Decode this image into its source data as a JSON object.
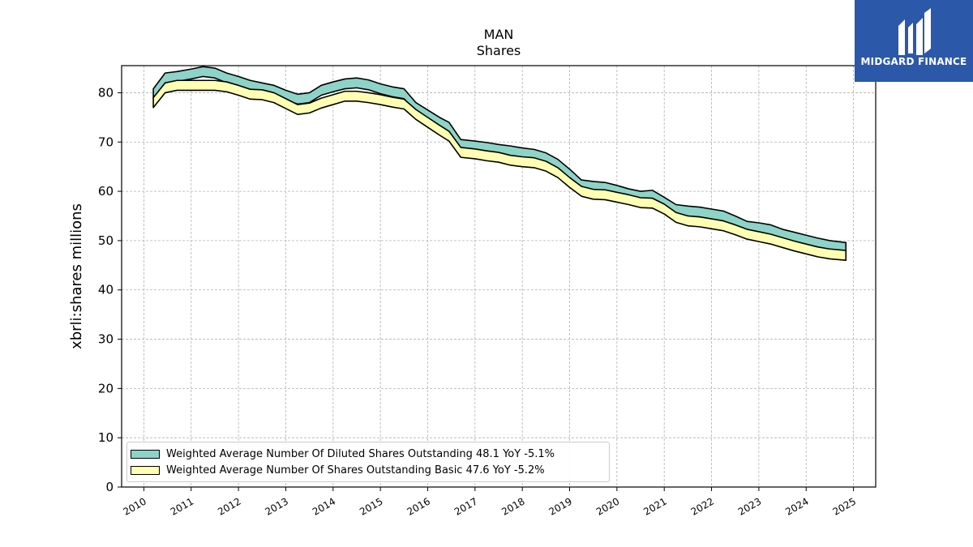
{
  "header": {
    "title": "MAN",
    "subtitle": "Shares"
  },
  "logo": {
    "text": "MIDGARD FINANCE",
    "icon": "midgard-logo-icon"
  },
  "chart_data": {
    "type": "area",
    "title": "MAN",
    "subtitle": "Shares",
    "xlabel": "",
    "ylabel": "xbrli:shares millions",
    "xlim": [
      2009.53,
      2025.47
    ],
    "ylim": [
      0,
      85.5
    ],
    "grid": true,
    "legend_position": "lower-left",
    "x_ticks": [
      "2010",
      "2011",
      "2012",
      "2013",
      "2014",
      "2015",
      "2016",
      "2017",
      "2018",
      "2019",
      "2020",
      "2021",
      "2022",
      "2023",
      "2024",
      "2025"
    ],
    "y_ticks": [
      0,
      10,
      20,
      30,
      40,
      50,
      60,
      70,
      80
    ],
    "series": [
      {
        "name": "Weighted Average Number Of Diluted Shares Outstanding  48.1 YoY -5.1%",
        "color": "#8dd3c7",
        "x": [
          2010.2,
          2010.45,
          2010.7,
          2011.0,
          2011.25,
          2011.5,
          2011.75,
          2012.0,
          2012.25,
          2012.5,
          2012.75,
          2013.0,
          2013.25,
          2013.5,
          2013.75,
          2014.0,
          2014.25,
          2014.5,
          2014.75,
          2015.0,
          2015.25,
          2015.5,
          2015.75,
          2016.0,
          2016.25,
          2016.45,
          2016.7,
          2017.0,
          2017.25,
          2017.5,
          2017.75,
          2018.0,
          2018.25,
          2018.5,
          2018.75,
          2019.0,
          2019.25,
          2019.5,
          2019.75,
          2020.0,
          2020.25,
          2020.5,
          2020.75,
          2021.0,
          2021.25,
          2021.5,
          2021.75,
          2022.0,
          2022.25,
          2022.5,
          2022.75,
          2023.0,
          2023.25,
          2023.5,
          2023.75,
          2024.0,
          2024.25,
          2024.5,
          2024.84
        ],
        "y": [
          79.8,
          83.0,
          83.3,
          83.8,
          84.3,
          84.0,
          83.0,
          82.3,
          81.5,
          81.0,
          80.5,
          79.5,
          78.7,
          79.0,
          80.5,
          81.2,
          81.8,
          82.0,
          81.6,
          80.8,
          80.2,
          79.8,
          77.0,
          75.5,
          74.0,
          73.0,
          69.5,
          69.2,
          68.9,
          68.5,
          68.2,
          67.8,
          67.5,
          66.8,
          65.5,
          63.5,
          61.3,
          61.0,
          60.8,
          60.2,
          59.5,
          59.0,
          59.2,
          57.8,
          56.3,
          56.0,
          55.8,
          55.4,
          55.0,
          54.0,
          52.9,
          52.6,
          52.2,
          51.3,
          50.7,
          50.1,
          49.5,
          49.0,
          48.6
        ]
      },
      {
        "name": "Weighted Average Number Of Shares Outstanding Basic  47.6 YoY -5.2%",
        "color": "#ffffb3",
        "x": [
          2010.2,
          2010.45,
          2010.7,
          2011.0,
          2011.25,
          2011.5,
          2011.75,
          2012.0,
          2012.25,
          2012.5,
          2012.75,
          2013.0,
          2013.25,
          2013.5,
          2013.75,
          2014.0,
          2014.25,
          2014.5,
          2014.75,
          2015.0,
          2015.25,
          2015.5,
          2015.75,
          2016.0,
          2016.25,
          2016.45,
          2016.7,
          2017.0,
          2017.25,
          2017.5,
          2017.75,
          2018.0,
          2018.25,
          2018.5,
          2018.75,
          2019.0,
          2019.25,
          2019.5,
          2019.75,
          2020.0,
          2020.25,
          2020.5,
          2020.75,
          2021.0,
          2021.25,
          2021.5,
          2021.75,
          2022.0,
          2022.25,
          2022.5,
          2022.75,
          2023.0,
          2023.25,
          2023.5,
          2023.75,
          2024.0,
          2024.25,
          2024.5,
          2024.84
        ],
        "y": [
          78.0,
          81.0,
          81.5,
          81.5,
          81.5,
          81.5,
          81.2,
          80.5,
          79.7,
          79.6,
          79.0,
          77.8,
          76.6,
          76.9,
          77.9,
          78.6,
          79.3,
          79.3,
          79.0,
          78.6,
          78.1,
          77.7,
          75.6,
          74.0,
          72.4,
          71.2,
          67.9,
          67.6,
          67.2,
          66.9,
          66.3,
          66.0,
          65.8,
          65.1,
          63.8,
          61.8,
          60.0,
          59.4,
          59.3,
          58.8,
          58.3,
          57.7,
          57.6,
          56.4,
          54.7,
          54.0,
          53.8,
          53.4,
          53.0,
          52.2,
          51.3,
          50.8,
          50.3,
          49.6,
          48.9,
          48.3,
          47.7,
          47.3,
          47.0
        ]
      }
    ]
  }
}
